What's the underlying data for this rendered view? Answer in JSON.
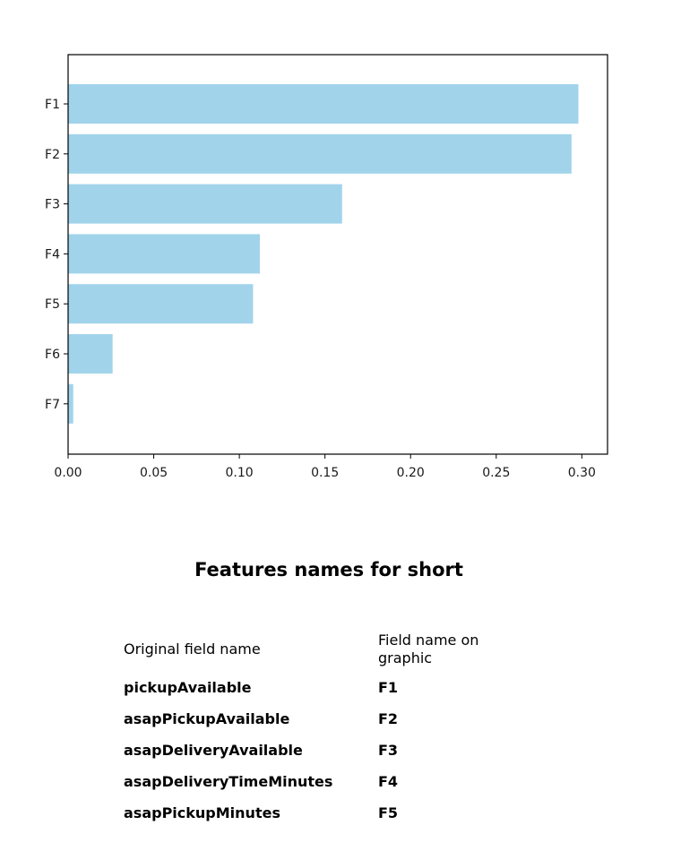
{
  "chart_data": {
    "type": "bar",
    "orientation": "horizontal",
    "categories": [
      "F1",
      "F2",
      "F3",
      "F4",
      "F5",
      "F6",
      "F7"
    ],
    "values": [
      0.298,
      0.294,
      0.16,
      0.112,
      0.108,
      0.026,
      0.003
    ],
    "xticks": [
      "0.00",
      "0.05",
      "0.10",
      "0.15",
      "0.20",
      "0.25",
      "0.30"
    ],
    "xlim": [
      0,
      0.315
    ],
    "bar_color": "#a1d4eb",
    "grid": false,
    "title": "",
    "xlabel": "",
    "ylabel": ""
  },
  "legend_section": {
    "title": "Features names for short",
    "columns": [
      "Original field name",
      "Field name on graphic"
    ],
    "rows": [
      [
        "pickupAvailable",
        "F1"
      ],
      [
        "asapPickupAvailable",
        "F2"
      ],
      [
        "asapDeliveryAvailable",
        "F3"
      ],
      [
        "asapDeliveryTimeMinutes",
        "F4"
      ],
      [
        "asapPickupMinutes",
        "F5"
      ]
    ]
  }
}
